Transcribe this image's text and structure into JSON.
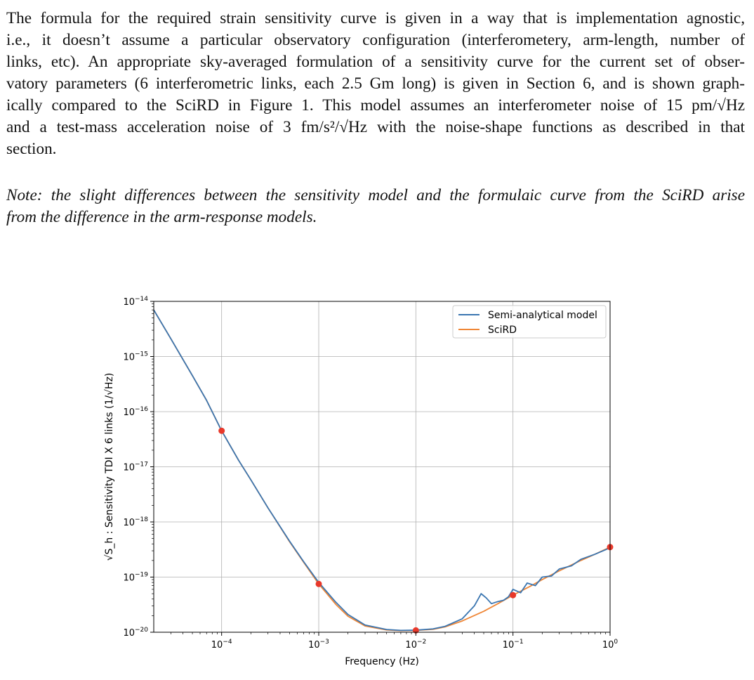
{
  "paragraph": {
    "lines": [
      "The formula for the required strain sensitivity curve is given in a way that is implementation agnostic,",
      "i.e., it doesn’t assume a particular observatory configuration (interferometery, arm-length, number of",
      "links, etc). An appropriate sky-averaged formulation of a sensitivity curve for the current set of obser-",
      "vatory parameters (6 interferometric links, each 2.5 Gm long) is given in Section 6, and is shown graph-",
      "ically compared to the SciRD in Figure 1. This model assumes an interferometer noise of 15 pm/√Hz",
      "and a test-mass acceleration noise of 3 fm/s²/√Hz with the noise-shape functions as described in that",
      "section."
    ]
  },
  "note": {
    "lines": [
      "Note: the slight differences between the sensitivity model and the formulaic curve from the SciRD arise",
      "from the difference in the arm-response models."
    ]
  },
  "chart_data": {
    "type": "line",
    "title": "",
    "xlabel": "Frequency (Hz)",
    "ylabel": "√S_h : Sensitivity TDI X 6 links (1/√Hz)",
    "xscale": "log",
    "yscale": "log",
    "xlim": [
      2e-05,
      1.0
    ],
    "ylim": [
      1e-20,
      1e-14
    ],
    "grid": true,
    "legend_position": "upper-right",
    "x_ticks": [
      0.0001,
      0.001,
      0.01,
      0.1,
      1.0
    ],
    "x_tick_labels": [
      {
        "base": "10",
        "exp": "−4"
      },
      {
        "base": "10",
        "exp": "−3"
      },
      {
        "base": "10",
        "exp": "−2"
      },
      {
        "base": "10",
        "exp": "−1"
      },
      {
        "base": "10",
        "exp": "0"
      }
    ],
    "y_ticks": [
      1e-14,
      1e-15,
      1e-16,
      1e-17,
      1e-18,
      1e-19,
      1e-20
    ],
    "y_tick_labels": [
      {
        "base": "10",
        "exp": "−14"
      },
      {
        "base": "10",
        "exp": "−15"
      },
      {
        "base": "10",
        "exp": "−16"
      },
      {
        "base": "10",
        "exp": "−17"
      },
      {
        "base": "10",
        "exp": "−18"
      },
      {
        "base": "10",
        "exp": "−19"
      },
      {
        "base": "10",
        "exp": "−20"
      }
    ],
    "series": [
      {
        "name": "Semi-analytical model",
        "color": "#3a75b0",
        "points": [
          [
            2e-05,
            7e-15
          ],
          [
            3e-05,
            2.1e-15
          ],
          [
            5e-05,
            4.5e-16
          ],
          [
            7e-05,
            1.6e-16
          ],
          [
            0.0001,
            4.5e-17
          ],
          [
            0.00015,
            1.3e-17
          ],
          [
            0.0002,
            5.8e-18
          ],
          [
            0.0003,
            1.8e-18
          ],
          [
            0.0005,
            4.5e-19
          ],
          [
            0.0007,
            1.9e-19
          ],
          [
            0.001,
            8e-20
          ],
          [
            0.0015,
            3.5e-20
          ],
          [
            0.002,
            2.1e-20
          ],
          [
            0.003,
            1.35e-20
          ],
          [
            0.005,
            1.12e-20
          ],
          [
            0.007,
            1.08e-20
          ],
          [
            0.01,
            1.09e-20
          ],
          [
            0.015,
            1.15e-20
          ],
          [
            0.02,
            1.28e-20
          ],
          [
            0.03,
            1.75e-20
          ],
          [
            0.04,
            3e-20
          ],
          [
            0.047,
            5e-20
          ],
          [
            0.053,
            4.2e-20
          ],
          [
            0.06,
            3.3e-20
          ],
          [
            0.07,
            3.6e-20
          ],
          [
            0.08,
            3.8e-20
          ],
          [
            0.09,
            4.4e-20
          ],
          [
            0.1,
            6e-20
          ],
          [
            0.12,
            5.2e-20
          ],
          [
            0.14,
            7.8e-20
          ],
          [
            0.17,
            7e-20
          ],
          [
            0.2,
            1e-19
          ],
          [
            0.25,
            1.05e-19
          ],
          [
            0.3,
            1.4e-19
          ],
          [
            0.4,
            1.6e-19
          ],
          [
            0.5,
            2.1e-19
          ],
          [
            0.7,
            2.6e-19
          ],
          [
            1.0,
            3.4e-19
          ]
        ]
      },
      {
        "name": "SciRD",
        "color": "#ef8636",
        "points": [
          [
            2e-05,
            7e-15
          ],
          [
            3e-05,
            2.1e-15
          ],
          [
            5e-05,
            4.5e-16
          ],
          [
            7e-05,
            1.6e-16
          ],
          [
            0.0001,
            4.5e-17
          ],
          [
            0.00015,
            1.3e-17
          ],
          [
            0.0002,
            5.8e-18
          ],
          [
            0.0003,
            1.8e-18
          ],
          [
            0.0005,
            4.4e-19
          ],
          [
            0.0007,
            1.85e-19
          ],
          [
            0.001,
            7.5e-20
          ],
          [
            0.0015,
            3.2e-20
          ],
          [
            0.002,
            1.95e-20
          ],
          [
            0.003,
            1.3e-20
          ],
          [
            0.005,
            1.1e-20
          ],
          [
            0.007,
            1.07e-20
          ],
          [
            0.01,
            1.08e-20
          ],
          [
            0.015,
            1.13e-20
          ],
          [
            0.02,
            1.25e-20
          ],
          [
            0.03,
            1.6e-20
          ],
          [
            0.05,
            2.4e-20
          ],
          [
            0.07,
            3.3e-20
          ],
          [
            0.1,
            4.7e-20
          ],
          [
            0.15,
            6.8e-20
          ],
          [
            0.2,
            9e-20
          ],
          [
            0.3,
            1.3e-19
          ],
          [
            0.5,
            2e-19
          ],
          [
            0.7,
            2.6e-19
          ],
          [
            1.0,
            3.5e-19
          ]
        ]
      }
    ],
    "markers": {
      "color": "#e8382a",
      "points": [
        [
          0.0001,
          4.5e-17
        ],
        [
          0.001,
          7.5e-20
        ],
        [
          0.01,
          1.08e-20
        ],
        [
          0.1,
          4.7e-20
        ],
        [
          1.0,
          3.5e-19
        ]
      ]
    }
  }
}
